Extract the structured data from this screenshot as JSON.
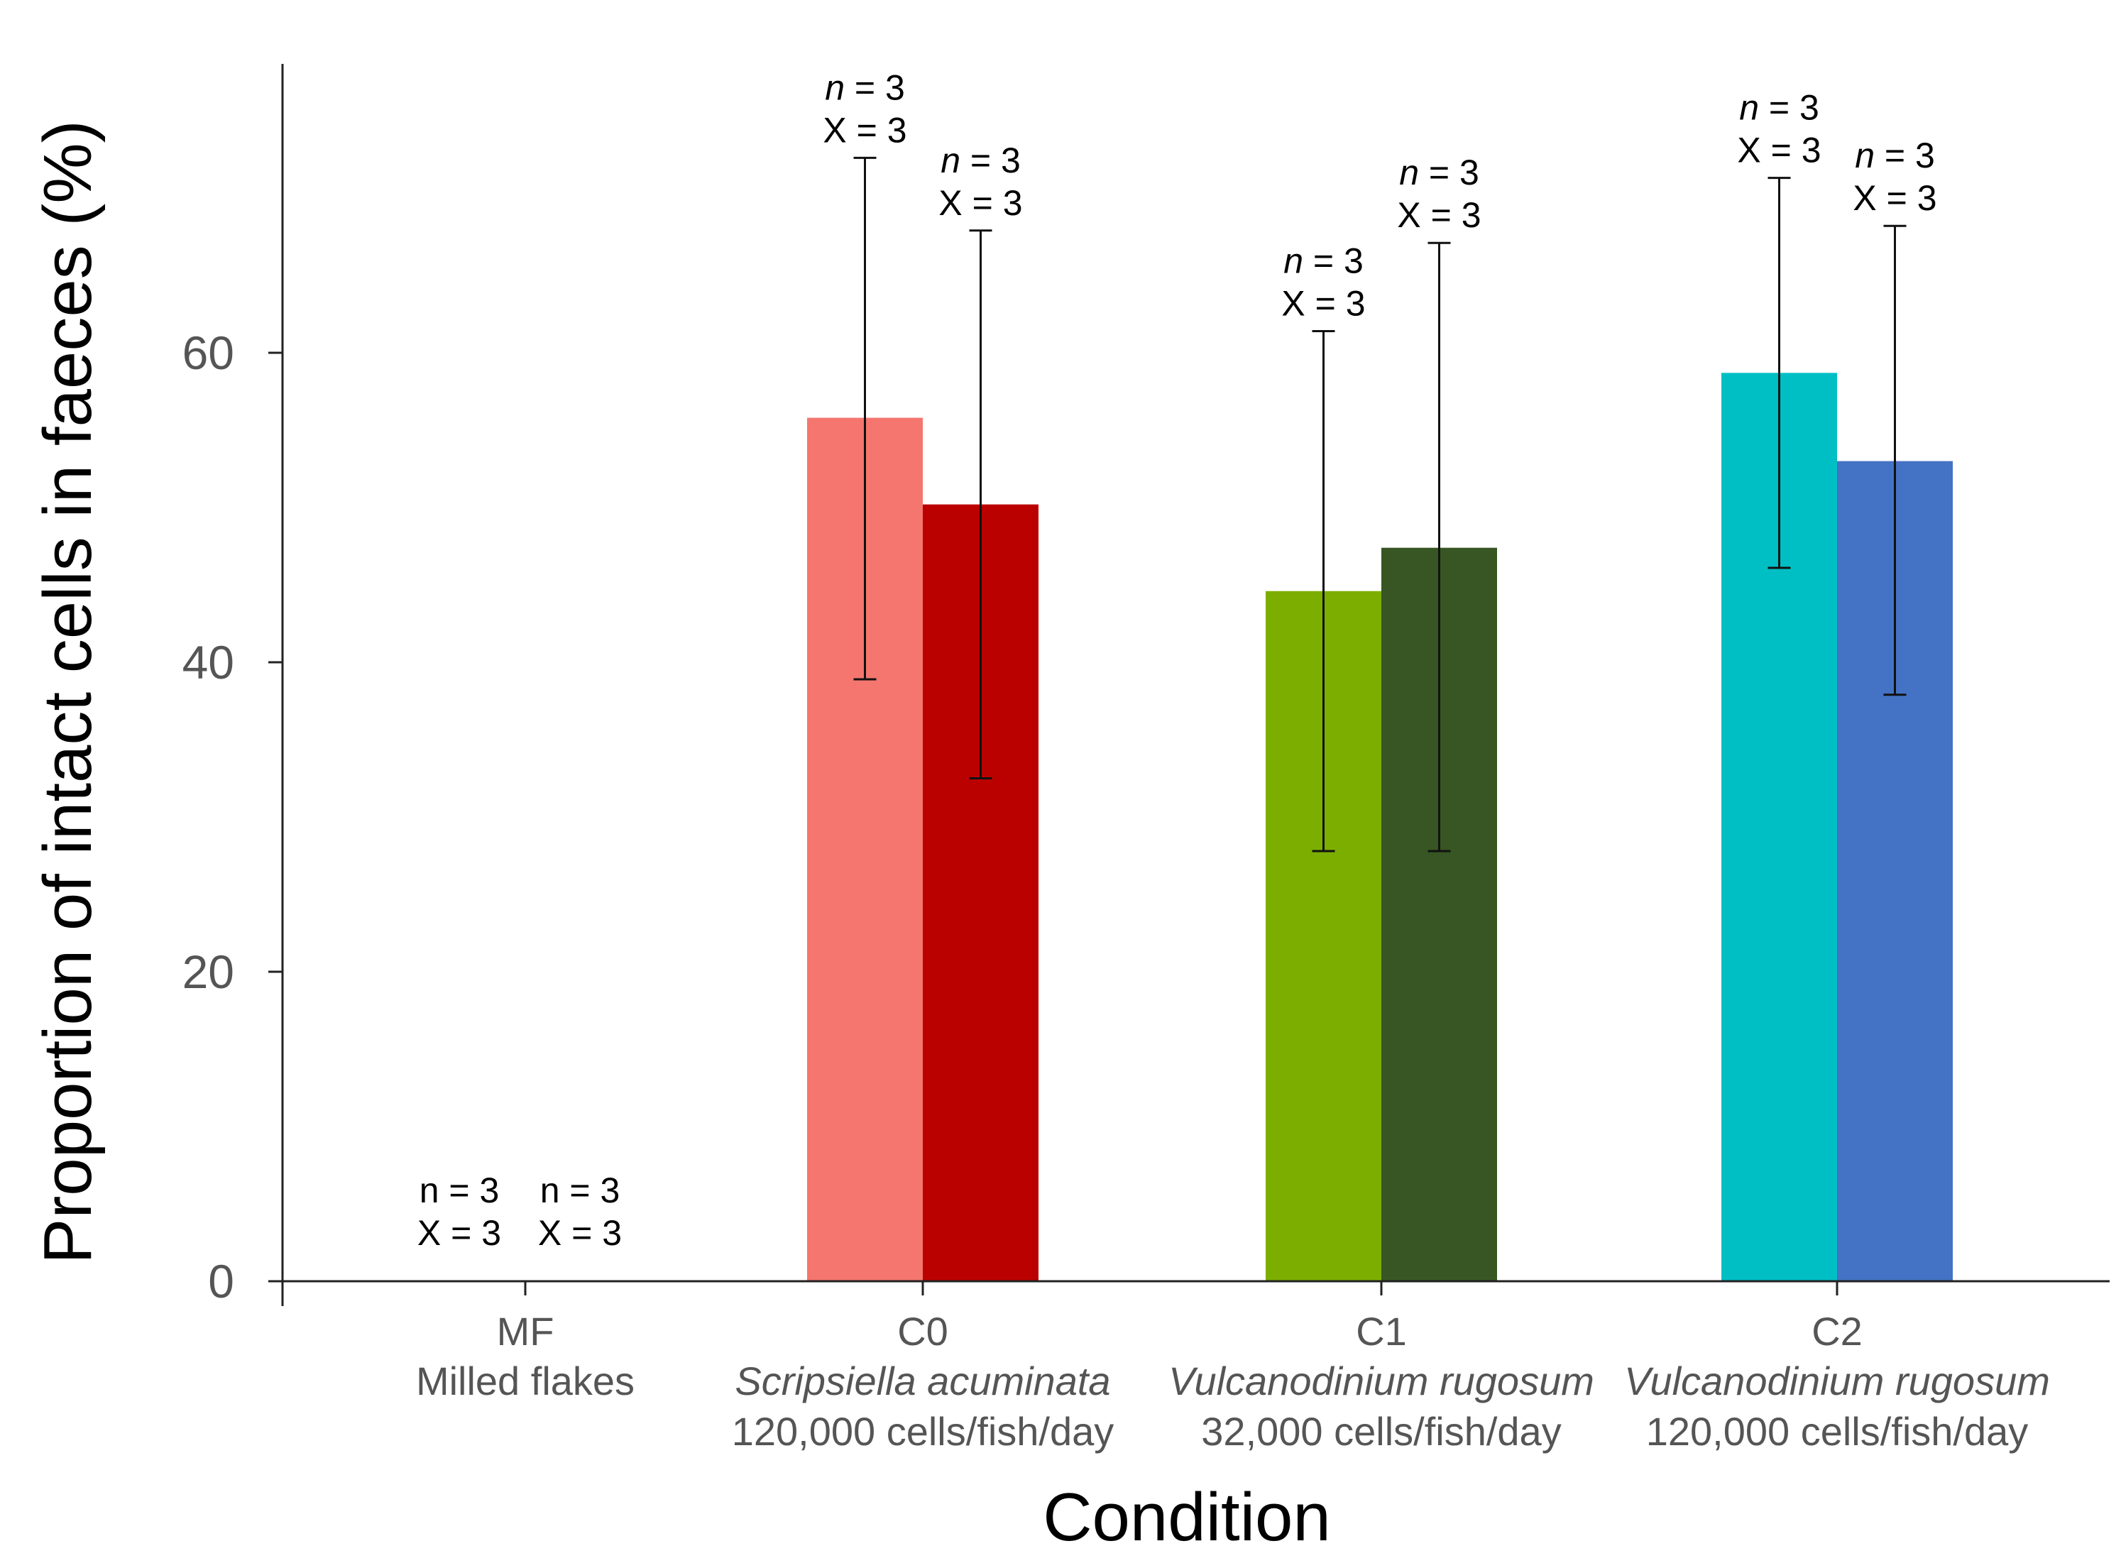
{
  "chart_data": {
    "type": "bar",
    "xlabel": "Condition",
    "ylabel": "Proportion of intact cells in faeces (%)",
    "ylim": [
      0,
      80
    ],
    "yticks": [
      0,
      20,
      40,
      60
    ],
    "groups": [
      {
        "code": "MF",
        "name": "Milled flakes",
        "name_italic": false,
        "dose": "",
        "bars": [
          {
            "value": 0,
            "err_low": 0,
            "err_high": 0,
            "color": "#ffffff",
            "n_label": "n = 3",
            "x_label": "X = 3",
            "n_italic": false
          },
          {
            "value": 0,
            "err_low": 0,
            "err_high": 0,
            "color": "#ffffff",
            "n_label": "n = 3",
            "x_label": "X = 3",
            "n_italic": false
          }
        ]
      },
      {
        "code": "C0",
        "name": "Scripsiella acuminata",
        "name_italic": true,
        "dose": "120,000 cells/fish/day",
        "bars": [
          {
            "value": 55.8,
            "err_low": 38.9,
            "err_high": 72.6,
            "color": "#f4766e",
            "n_label": "n = 3",
            "x_label": "X = 3",
            "n_italic": true
          },
          {
            "value": 50.2,
            "err_low": 32.5,
            "err_high": 67.9,
            "color": "#bb0000",
            "n_label": "n = 3",
            "x_label": "X = 3",
            "n_italic": true
          }
        ]
      },
      {
        "code": "C1",
        "name": "Vulcanodinium rugosum",
        "name_italic": true,
        "dose": "32,000 cells/fish/day",
        "bars": [
          {
            "value": 44.6,
            "err_low": 27.8,
            "err_high": 61.4,
            "color": "#7cae00",
            "n_label": "n = 3",
            "x_label": "X = 3",
            "n_italic": true
          },
          {
            "value": 47.4,
            "err_low": 27.8,
            "err_high": 67.1,
            "color": "#375623",
            "n_label": "n = 3",
            "x_label": "X = 3",
            "n_italic": true
          }
        ]
      },
      {
        "code": "C2",
        "name": "Vulcanodinium rugosum",
        "name_italic": true,
        "dose": "120,000 cells/fish/day",
        "bars": [
          {
            "value": 58.7,
            "err_low": 46.1,
            "err_high": 71.3,
            "color": "#00bfc4",
            "n_label": "n = 3",
            "x_label": "X = 3",
            "n_italic": true
          },
          {
            "value": 53.0,
            "err_low": 37.9,
            "err_high": 68.2,
            "color": "#4472c4",
            "n_label": "n = 3",
            "x_label": "X = 3",
            "n_italic": true
          }
        ]
      }
    ]
  }
}
